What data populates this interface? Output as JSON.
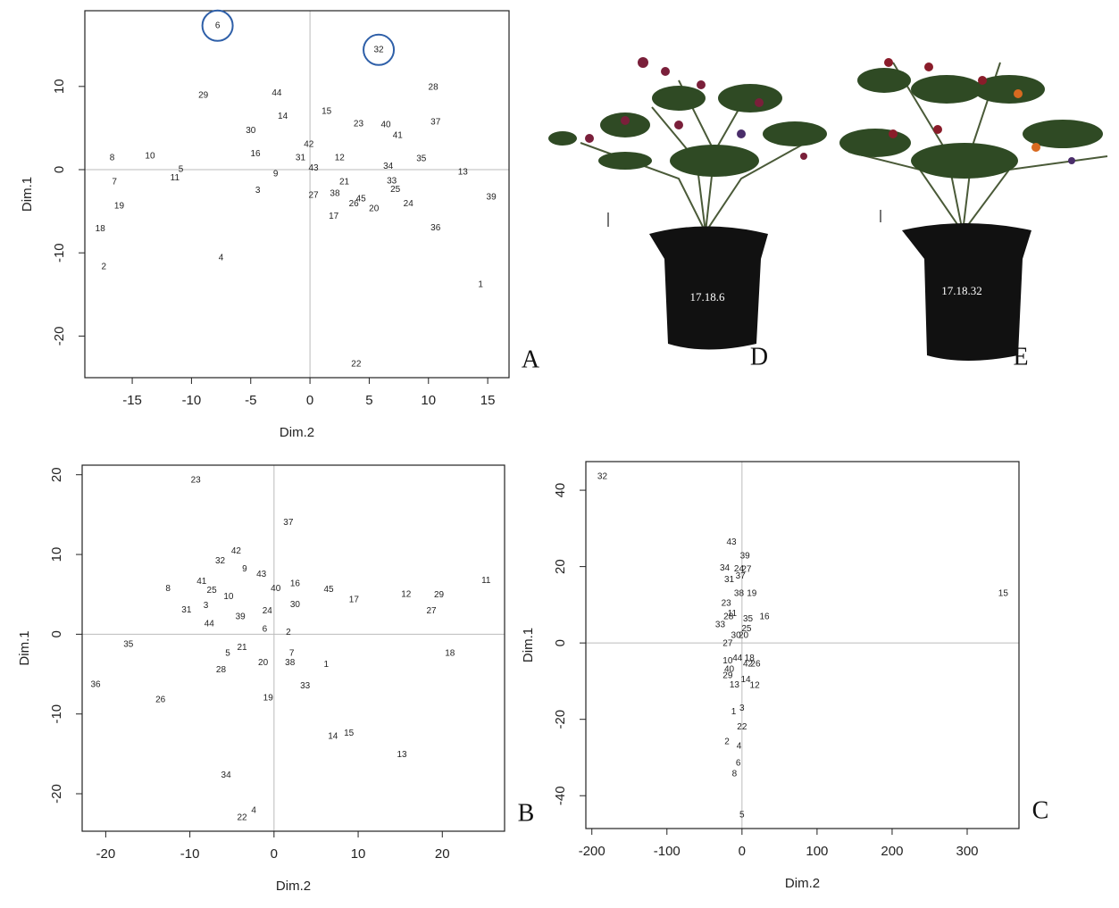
{
  "chart_data": [
    {
      "type": "scatter",
      "panel": "A",
      "x_label": "Dim.2",
      "y_label": "Dim.1",
      "xlim": [
        -19.0,
        16.8
      ],
      "ylim": [
        -25.0,
        19.1
      ],
      "xticks": [
        -15,
        -10,
        -5,
        0,
        5,
        10,
        15
      ],
      "yticks": [
        -20,
        -10,
        0,
        10
      ],
      "zero_lines": true,
      "highlight": [
        "6",
        "32"
      ],
      "highlight_color": "#2e5fa8",
      "labels": [
        "6",
        "32",
        "28",
        "29",
        "44",
        "15",
        "14",
        "37",
        "23",
        "40",
        "30",
        "41",
        "42",
        "10",
        "8",
        "16",
        "31",
        "12",
        "35",
        "34",
        "43",
        "5",
        "13",
        "11",
        "9",
        "7",
        "21",
        "33",
        "3",
        "25",
        "27",
        "38",
        "45",
        "26",
        "39",
        "24",
        "19",
        "20",
        "17",
        "18",
        "36",
        "4",
        "2",
        "1",
        "22"
      ],
      "x": [
        -7.8,
        5.8,
        10.4,
        -9.0,
        -2.8,
        1.4,
        -2.3,
        10.6,
        4.1,
        6.4,
        -5.0,
        7.4,
        -0.1,
        -13.5,
        -16.7,
        -4.6,
        -0.8,
        2.5,
        9.4,
        6.6,
        0.3,
        -10.9,
        12.9,
        -11.4,
        -2.9,
        -16.5,
        2.9,
        6.9,
        -4.4,
        7.2,
        0.3,
        2.1,
        4.3,
        3.7,
        15.3,
        8.3,
        -16.1,
        5.4,
        2.0,
        -17.7,
        10.6,
        -7.5,
        -17.4,
        14.4,
        3.9
      ],
      "y": [
        17.3,
        14.4,
        9.9,
        8.9,
        9.2,
        7.0,
        6.4,
        5.7,
        5.5,
        5.4,
        4.7,
        4.1,
        3.0,
        1.6,
        1.4,
        1.9,
        1.4,
        1.4,
        1.3,
        0.4,
        0.2,
        0,
        -0.3,
        -1.0,
        -0.5,
        -1.5,
        -1.5,
        -1.4,
        -2.5,
        -2.4,
        -3.1,
        -2.9,
        -3.5,
        -4.1,
        -3.3,
        -4.1,
        -4.4,
        -4.7,
        -5.6,
        -7.1,
        -7.0,
        -10.6,
        -11.7,
        -13.8,
        -23.4
      ]
    },
    {
      "type": "scatter",
      "panel": "B",
      "x_label": "Dim.2",
      "y_label": "Dim.1",
      "xlim": [
        -22.8,
        27.4
      ],
      "ylim": [
        -24.7,
        21.2
      ],
      "xticks": [
        -20,
        -10,
        0,
        10,
        20
      ],
      "yticks": [
        -20,
        -10,
        0,
        10,
        20
      ],
      "zero_lines": true,
      "labels": [
        "23",
        "37",
        "42",
        "32",
        "9",
        "43",
        "16",
        "40",
        "45",
        "8",
        "41",
        "25",
        "10",
        "12",
        "29",
        "11",
        "17",
        "30",
        "3",
        "31",
        "24",
        "27",
        "39",
        "44",
        "6",
        "2",
        "35",
        "7",
        "5",
        "21",
        "18",
        "20",
        "38",
        "1",
        "28",
        "33",
        "36",
        "26",
        "19",
        "14",
        "15",
        "13",
        "34",
        "4",
        "22"
      ],
      "x": [
        -9.3,
        1.7,
        -4.5,
        -6.4,
        -3.5,
        -1.5,
        2.5,
        0.2,
        6.5,
        -12.6,
        -8.6,
        -7.4,
        -5.4,
        15.7,
        19.6,
        25.2,
        9.5,
        2.5,
        -8.1,
        -10.4,
        -0.8,
        18.7,
        -4.0,
        -7.7,
        -1.1,
        1.7,
        -17.3,
        2.1,
        -5.5,
        -3.8,
        20.9,
        -1.3,
        1.9,
        6.2,
        -6.3,
        3.7,
        -21.2,
        -13.5,
        -0.7,
        7.0,
        8.9,
        15.2,
        -5.7,
        -2.4,
        -3.8
      ],
      "y": [
        19.3,
        14.0,
        10.4,
        9.2,
        8.2,
        7.5,
        6.3,
        5.7,
        5.6,
        5.7,
        6.6,
        5.5,
        4.7,
        5.0,
        4.9,
        6.7,
        4.3,
        3.7,
        3.6,
        3.0,
        2.9,
        2.9,
        2.2,
        1.3,
        0.6,
        0.2,
        -1.3,
        -2.4,
        -2.4,
        -1.7,
        -2.4,
        -3.6,
        -3.6,
        -3.8,
        -4.5,
        -6.5,
        -6.3,
        -8.2,
        -8.0,
        -12.8,
        -12.4,
        -15.1,
        -17.7,
        -22.1,
        -23.0
      ]
    },
    {
      "type": "scatter",
      "panel": "C",
      "x_label": "Dim.2",
      "y_label": "Dim.1",
      "xlim": [
        -208,
        369
      ],
      "ylim": [
        -48.6,
        47.5
      ],
      "xticks": [
        -200,
        -100,
        0,
        100,
        200,
        300
      ],
      "yticks": [
        -40,
        -20,
        0,
        20,
        40
      ],
      "zero_lines": true,
      "labels": [
        "32",
        "43",
        "39",
        "34",
        "24",
        "27",
        "31",
        "37",
        "38",
        "19",
        "15",
        "23",
        "11",
        "28",
        "35",
        "16",
        "33",
        "25",
        "30",
        "20",
        "27",
        "10",
        "44",
        "18",
        "42",
        "26",
        "40",
        "29",
        "14",
        "13",
        "12",
        "1",
        "3",
        "22",
        "2",
        "4",
        "6",
        "8",
        "5"
      ],
      "x": [
        -186,
        -14,
        4,
        -23,
        -4,
        6,
        -17,
        -2,
        -4,
        13,
        348,
        -21,
        -13,
        -18,
        8,
        30,
        -29,
        6,
        -8,
        2,
        -19,
        -19,
        -6,
        10,
        8,
        18,
        -17,
        -19,
        5,
        -10,
        17,
        -11,
        0,
        0,
        -20,
        -4,
        -5,
        -10,
        0
      ],
      "y": [
        43.5,
        26.4,
        22.7,
        19.6,
        19.4,
        19.2,
        16.6,
        17.5,
        12.9,
        12.9,
        12.9,
        10.3,
        7.7,
        6.8,
        6.3,
        6.8,
        4.7,
        3.7,
        1.9,
        1.9,
        -0.2,
        -4.7,
        -4.0,
        -4.0,
        -5.6,
        -5.6,
        -7.0,
        -8.6,
        -9.6,
        -11.0,
        -11.2,
        -18.0,
        -17.1,
        -22.0,
        -25.9,
        -27.1,
        -31.5,
        -34.3,
        -45.1
      ]
    }
  ],
  "photos": [
    {
      "label": "17.18.6",
      "panel": "D"
    },
    {
      "label": "17.18.32",
      "panel": "E"
    }
  ]
}
